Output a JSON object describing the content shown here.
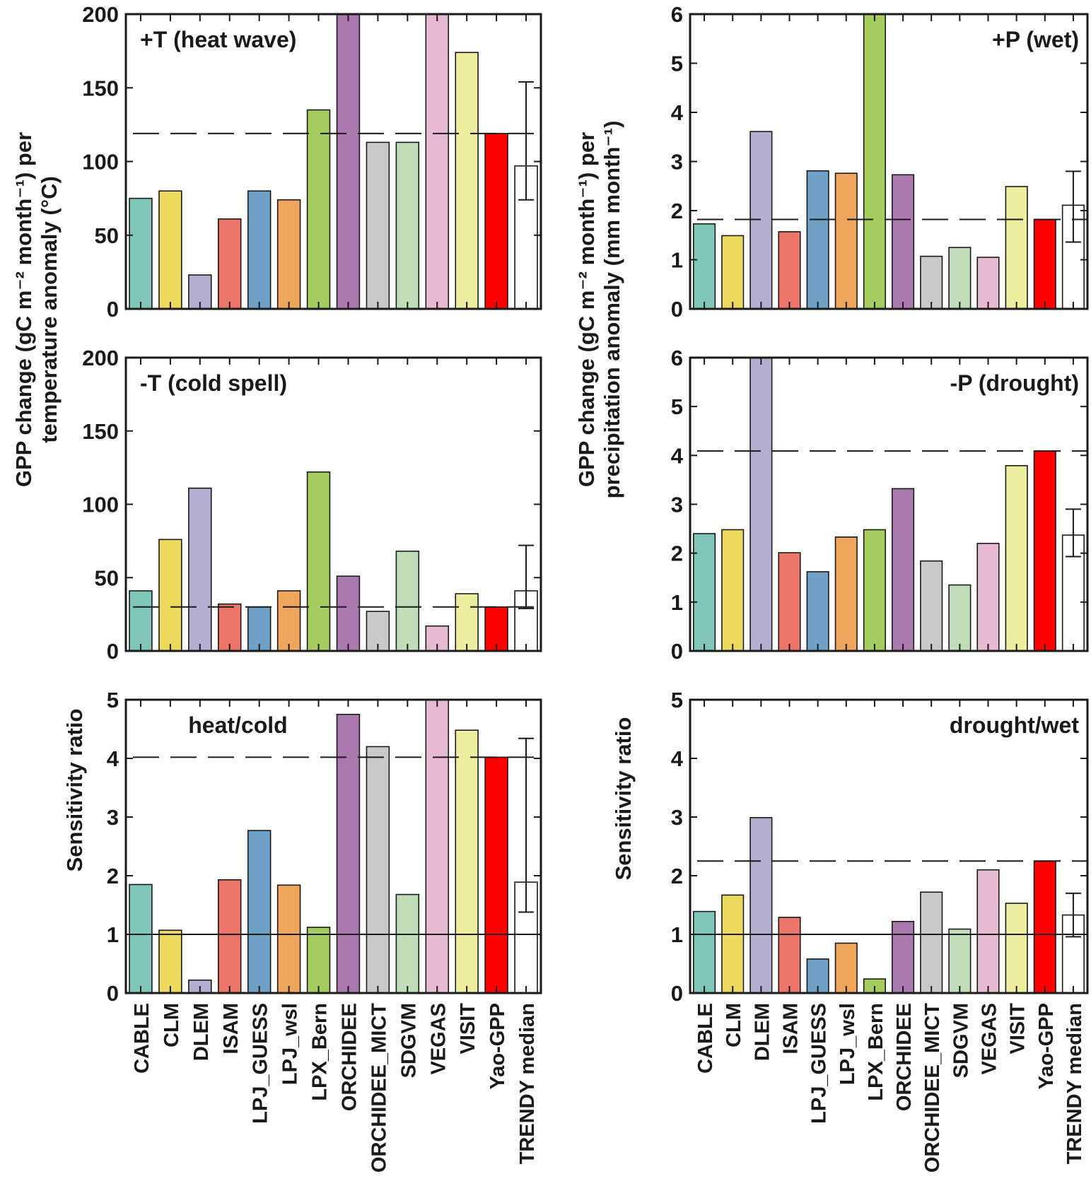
{
  "categories": [
    "CABLE",
    "CLM",
    "DLEM",
    "ISAM",
    "LPJ_GUESS",
    "LPJ_wsl",
    "LPX_Bern",
    "ORCHIDEE",
    "ORCHIDEE_MICT",
    "SDGVM",
    "VEGAS",
    "VISIT",
    "Yao-GPP",
    "TRENDY median"
  ],
  "colors": [
    "#80c6b8",
    "#ecd95e",
    "#b3b0cf",
    "#ec7568",
    "#6fa1c6",
    "#eda65b",
    "#a4cc5e",
    "#ac79ae",
    "#c9c9c9",
    "#c0dcb8",
    "#e8bad2",
    "#eded9f",
    "#ff0000",
    "#ffffff"
  ],
  "y_labels": {
    "temperature": [
      "GPP change (gC m⁻² month⁻¹) per",
      "temperature anomaly (°C)"
    ],
    "precipitation": [
      "GPP change (gC m⁻² month⁻¹) per",
      "precipitation anomaly (mm month⁻¹)"
    ],
    "ratio": "Sensitivity ratio"
  },
  "chart_data": [
    {
      "id": "heat",
      "type": "bar",
      "title": "+T (heat wave)",
      "title_position": "top-left",
      "ylim": [
        0,
        200
      ],
      "yticks": [
        0,
        50,
        100,
        150,
        200
      ],
      "values": [
        75,
        80,
        23,
        61,
        80,
        74,
        135,
        215,
        113,
        113,
        210,
        174,
        119,
        97
      ],
      "errorbar": {
        "category": "TRENDY median",
        "low": 74,
        "high": 154
      },
      "reference_dashed": 119
    },
    {
      "id": "wet",
      "type": "bar",
      "title": "+P (wet)",
      "title_position": "top-right",
      "ylim": [
        0,
        6
      ],
      "yticks": [
        0,
        1,
        2,
        3,
        4,
        5,
        6
      ],
      "values": [
        1.73,
        1.49,
        3.61,
        1.57,
        2.81,
        2.76,
        6.5,
        2.73,
        1.07,
        1.25,
        1.05,
        2.49,
        1.82,
        2.11
      ],
      "errorbar": {
        "category": "TRENDY median",
        "low": 1.36,
        "high": 2.8
      },
      "reference_dashed": 1.82
    },
    {
      "id": "cold",
      "type": "bar",
      "title": "-T (cold spell)",
      "title_position": "top-left",
      "ylim": [
        0,
        200
      ],
      "yticks": [
        0,
        50,
        100,
        150,
        200
      ],
      "values": [
        41,
        76,
        111,
        32,
        30,
        41,
        122,
        51,
        27,
        68,
        17,
        39,
        30,
        41
      ],
      "errorbar": {
        "category": "TRENDY median",
        "low": 29,
        "high": 72
      },
      "reference_dashed": 30
    },
    {
      "id": "drought",
      "type": "bar",
      "title": "-P (drought)",
      "title_position": "top-right",
      "ylim": [
        0,
        6
      ],
      "yticks": [
        0,
        1,
        2,
        3,
        4,
        5,
        6
      ],
      "values": [
        2.4,
        2.48,
        6.5,
        2.01,
        1.62,
        2.33,
        2.48,
        3.32,
        1.84,
        1.35,
        2.2,
        3.79,
        4.09,
        2.37
      ],
      "errorbar": {
        "category": "TRENDY median",
        "low": 1.93,
        "high": 2.9
      },
      "reference_dashed": 4.09
    },
    {
      "id": "heatcold",
      "type": "bar",
      "title": "heat/cold",
      "title_position": "top-center",
      "ylim": [
        0,
        5
      ],
      "yticks": [
        0,
        1,
        2,
        3,
        4,
        5
      ],
      "values": [
        1.85,
        1.07,
        0.22,
        1.93,
        2.77,
        1.84,
        1.12,
        4.75,
        4.2,
        1.68,
        5.3,
        4.48,
        4.02,
        1.89
      ],
      "errorbar": {
        "category": "TRENDY median",
        "low": 1.38,
        "high": 4.34
      },
      "reference_dashed": 4.02,
      "reference_solid": 1
    },
    {
      "id": "droughtwet",
      "type": "bar",
      "title": "drought/wet",
      "title_position": "top-right",
      "ylim": [
        0,
        5
      ],
      "yticks": [
        0,
        1,
        2,
        3,
        4,
        5
      ],
      "values": [
        1.39,
        1.67,
        2.99,
        1.29,
        0.58,
        0.85,
        0.24,
        1.22,
        1.72,
        1.09,
        2.1,
        1.53,
        2.25,
        1.33
      ],
      "errorbar": {
        "category": "TRENDY median",
        "low": 0.96,
        "high": 1.7
      },
      "reference_dashed": 2.25,
      "reference_solid": 1
    }
  ]
}
